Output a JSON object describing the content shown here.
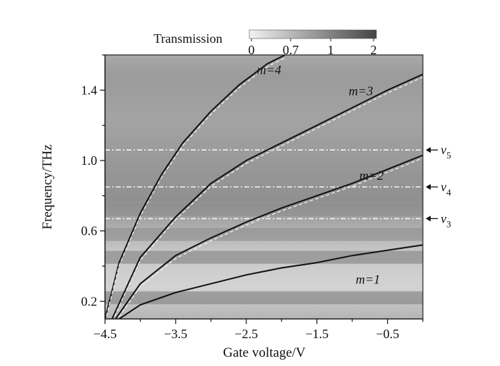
{
  "chart_data": {
    "type": "heatmap",
    "xlabel": "Gate voltage/V",
    "ylabel": "Frequency/THz",
    "xlim": [
      -4.5,
      0
    ],
    "ylim": [
      0.1,
      1.6
    ],
    "xticks": [
      -4.5,
      -3.5,
      -2.5,
      -1.5,
      -0.5
    ],
    "xtick_labels": [
      "−4.5",
      "−3.5",
      "−2.5",
      "−1.5",
      "−0.5"
    ],
    "yticks": [
      0.2,
      0.6,
      1.0,
      1.4
    ],
    "ytick_labels": [
      "0.2",
      "0.6",
      "1.0",
      "1.4"
    ],
    "colorbar": {
      "title": "Transmission",
      "ticks": [
        "0",
        "0.7",
        "1",
        "2"
      ],
      "colors": [
        "#f2f2f2",
        "#4a4a4a"
      ]
    },
    "background_bands": [
      {
        "y": 0.22,
        "shade": "#787878"
      },
      {
        "y": 0.45,
        "shade": "#7a7a7a"
      },
      {
        "y": 0.58,
        "shade": "#8a8a8a"
      },
      {
        "y": 0.72,
        "shade": "#8d8d8d"
      },
      {
        "y": 0.91,
        "shade": "#959595"
      },
      {
        "y": 1.08,
        "shade": "#9c9c9c"
      }
    ],
    "plasmon_modes": [
      {
        "label": "m=1",
        "m": 1,
        "x": [
          -4.3,
          -4.0,
          -3.5,
          -3.0,
          -2.5,
          -2.0,
          -1.5,
          -1.0,
          -0.5,
          0.0
        ],
        "y": [
          0.1,
          0.18,
          0.25,
          0.3,
          0.35,
          0.39,
          0.42,
          0.46,
          0.49,
          0.52
        ]
      },
      {
        "label": "m=2",
        "m": 2,
        "x": [
          -4.35,
          -4.0,
          -3.5,
          -3.0,
          -2.5,
          -2.0,
          -1.5,
          -1.0,
          -0.5,
          0.0
        ],
        "y": [
          0.1,
          0.3,
          0.46,
          0.56,
          0.65,
          0.73,
          0.8,
          0.87,
          0.95,
          1.03
        ]
      },
      {
        "label": "m=3",
        "m": 3,
        "x": [
          -4.4,
          -4.0,
          -3.5,
          -3.0,
          -2.5,
          -2.0,
          -1.5,
          -1.0,
          -0.5,
          0.0
        ],
        "y": [
          0.1,
          0.45,
          0.68,
          0.87,
          1.0,
          1.1,
          1.2,
          1.3,
          1.4,
          1.49
        ]
      },
      {
        "label": "m=4",
        "m": 4,
        "x": [
          -4.5,
          -4.3,
          -4.0,
          -3.7,
          -3.4,
          -3.0,
          -2.6,
          -2.2,
          -1.95
        ],
        "y": [
          0.1,
          0.42,
          0.7,
          0.92,
          1.1,
          1.28,
          1.43,
          1.55,
          1.6
        ]
      }
    ],
    "modes": [
      {
        "label": "ν3",
        "sub": "3",
        "frequency": 0.67
      },
      {
        "label": "ν4",
        "sub": "4",
        "frequency": 0.85
      },
      {
        "label": "ν5",
        "sub": "5",
        "frequency": 1.06
      }
    ]
  }
}
